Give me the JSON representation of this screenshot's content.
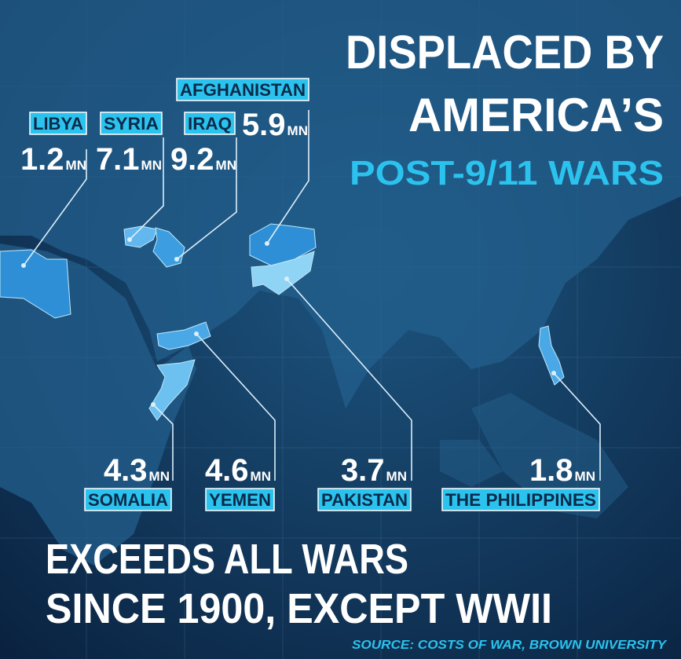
{
  "title": {
    "line1": "DISPLACED BY",
    "line2": "AMERICA’S",
    "line3": "POST-9/11 WARS"
  },
  "countries": [
    {
      "name": "LIBYA",
      "value": 1.2,
      "unit": "MN"
    },
    {
      "name": "SYRIA",
      "value": 7.1,
      "unit": "MN"
    },
    {
      "name": "IRAQ",
      "value": 9.2,
      "unit": "MN"
    },
    {
      "name": "AFGHANISTAN",
      "value": 5.9,
      "unit": "MN"
    },
    {
      "name": "SOMALIA",
      "value": 4.3,
      "unit": "MN"
    },
    {
      "name": "YEMEN",
      "value": 4.6,
      "unit": "MN"
    },
    {
      "name": "PAKISTAN",
      "value": 3.7,
      "unit": "MN"
    },
    {
      "name": "THE PHILIPPINES",
      "value": 1.8,
      "unit": "MN"
    }
  ],
  "footer": {
    "line1": "EXCEEDS ALL WARS",
    "line2": "SINCE 1900, EXCEPT WWII",
    "source": "SOURCE: COSTS OF WAR, BROWN UNIVERSITY"
  }
}
